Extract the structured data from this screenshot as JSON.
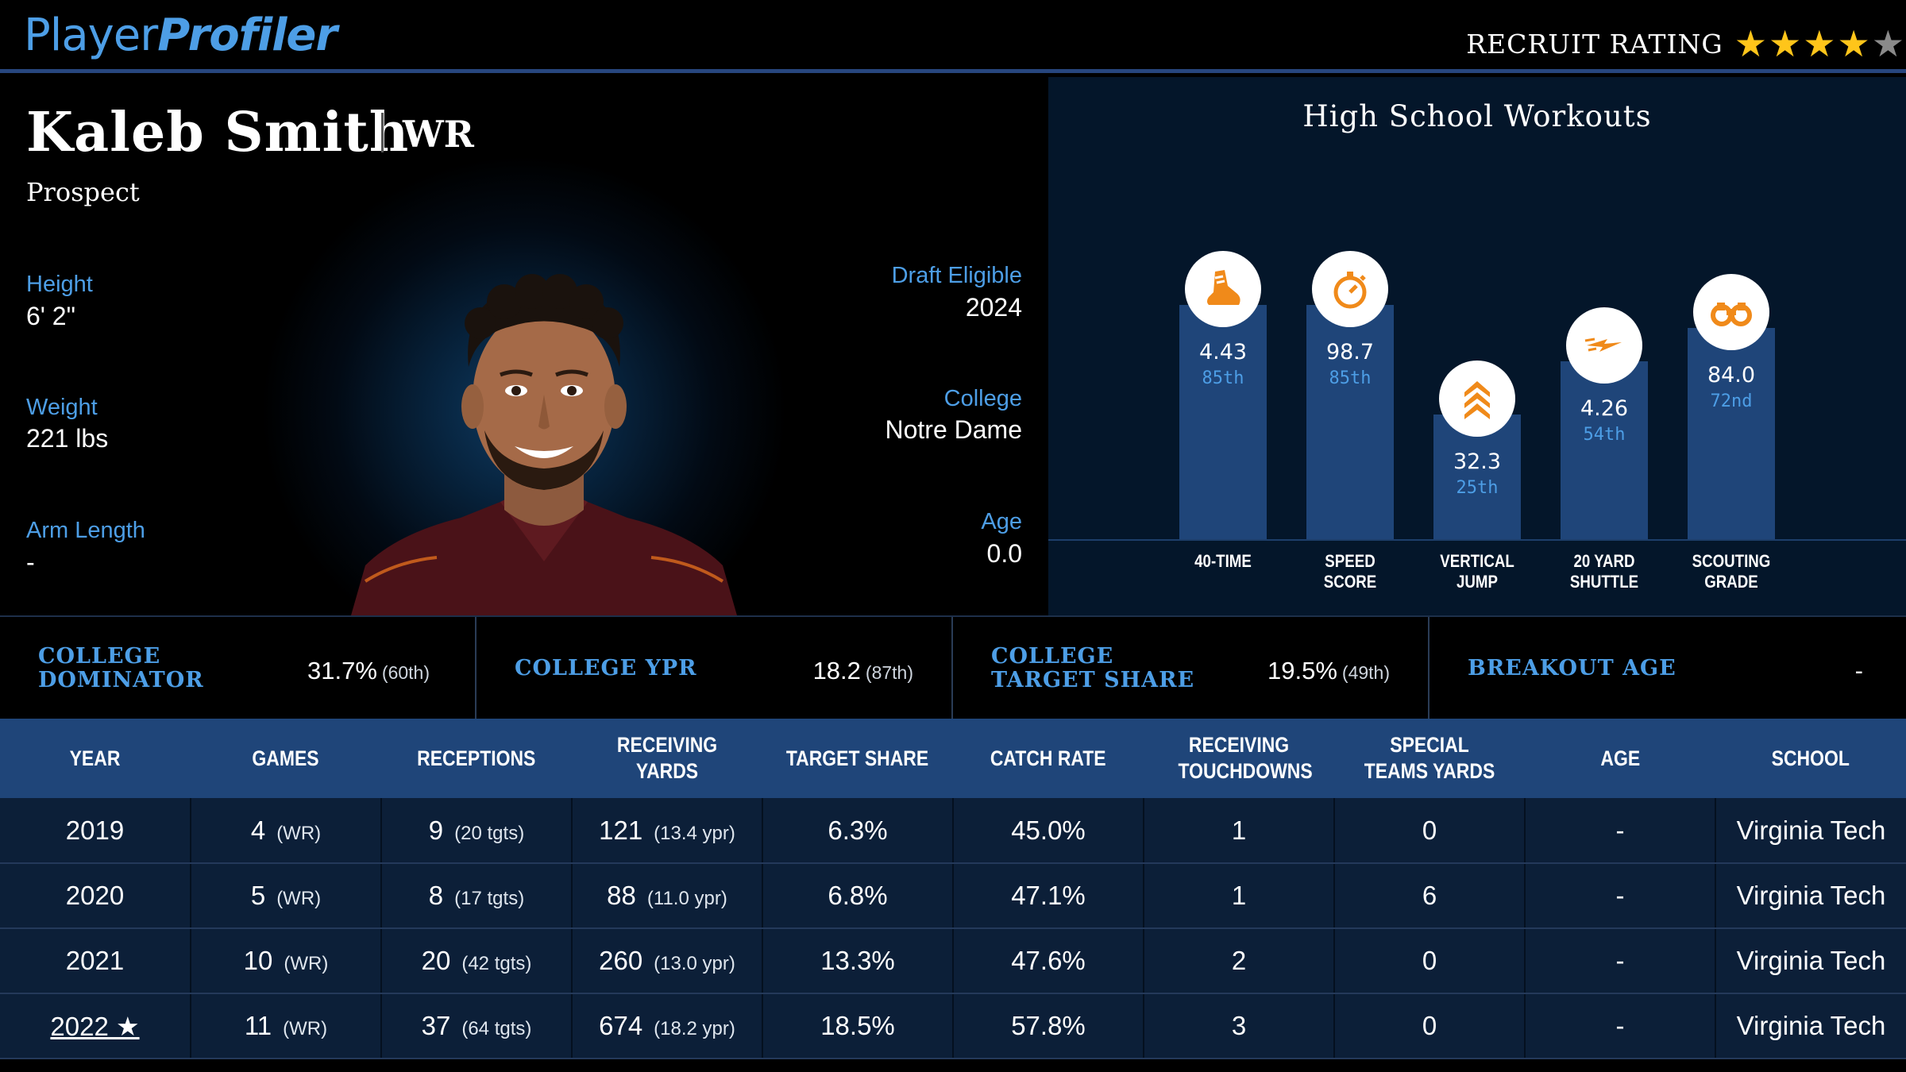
{
  "header": {
    "logo_part1": "Player",
    "logo_part2": "Profiler",
    "rating_label": "RECRUIT RATING",
    "rating_stars": 4,
    "rating_max": 5
  },
  "player": {
    "name": "Kaleb Smith",
    "position": "WR",
    "status": "Prospect",
    "height_label": "Height",
    "height": "6' 2\"",
    "weight_label": "Weight",
    "weight": "221 lbs",
    "arm_label": "Arm Length",
    "arm": "-",
    "draft_label": "Draft Eligible",
    "draft": "2024",
    "college_label": "College",
    "college": "Notre Dame",
    "age_label": "Age",
    "age": "0.0"
  },
  "workouts": {
    "title": "High School Workouts",
    "items": [
      {
        "label_1": "40-TIME",
        "label_2": "",
        "value": "4.43",
        "pct": "85th",
        "pct_num": 85,
        "icon": "shoe-icon"
      },
      {
        "label_1": "SPEED",
        "label_2": "SCORE",
        "value": "98.7",
        "pct": "85th",
        "pct_num": 85,
        "icon": "stopwatch-icon"
      },
      {
        "label_1": "VERTICAL",
        "label_2": "JUMP",
        "value": "32.3",
        "pct": "25th",
        "pct_num": 25,
        "icon": "chevrons-up-icon"
      },
      {
        "label_1": "20 YARD",
        "label_2": "SHUTTLE",
        "value": "4.26",
        "pct": "54th",
        "pct_num": 54,
        "icon": "lightning-icon"
      },
      {
        "label_1": "SCOUTING",
        "label_2": "GRADE",
        "value": "84.0",
        "pct": "72nd",
        "pct_num": 72,
        "icon": "binoculars-icon"
      }
    ]
  },
  "metrics": [
    {
      "label": "COLLEGE DOMINATOR",
      "value": "31.7%",
      "pct": "(60th)"
    },
    {
      "label": "COLLEGE YPR",
      "value": "18.2",
      "pct": "(87th)"
    },
    {
      "label": "COLLEGE TARGET SHARE",
      "value": "19.5%",
      "pct": "(49th)"
    },
    {
      "label": "BREAKOUT AGE",
      "value": "-",
      "pct": ""
    }
  ],
  "table": {
    "headers": [
      "YEAR",
      "GAMES",
      "RECEPTIONS",
      "RECEIVING YARDS",
      "TARGET SHARE",
      "CATCH RATE",
      "RECEIVING TOUCHDOWNS",
      "SPECIAL TEAMS YARDS",
      "AGE",
      "SCHOOL"
    ],
    "rows": [
      {
        "year": "2019",
        "games": "4",
        "games_sub": "(WR)",
        "rec": "9",
        "rec_sub": "(20 tgts)",
        "yds": "121",
        "yds_sub": "(13.4 ypr)",
        "ts": "6.3%",
        "cr": "45.0%",
        "td": "1",
        "st": "0",
        "age": "-",
        "school": "Virginia Tech"
      },
      {
        "year": "2020",
        "games": "5",
        "games_sub": "(WR)",
        "rec": "8",
        "rec_sub": "(17 tgts)",
        "yds": "88",
        "yds_sub": "(11.0 ypr)",
        "ts": "6.8%",
        "cr": "47.1%",
        "td": "1",
        "st": "6",
        "age": "-",
        "school": "Virginia Tech"
      },
      {
        "year": "2021",
        "games": "10",
        "games_sub": "(WR)",
        "rec": "20",
        "rec_sub": "(42 tgts)",
        "yds": "260",
        "yds_sub": "(13.0 ypr)",
        "ts": "13.3%",
        "cr": "47.6%",
        "td": "2",
        "st": "0",
        "age": "-",
        "school": "Virginia Tech"
      },
      {
        "year": "2022 ★",
        "games": "11",
        "games_sub": "(WR)",
        "rec": "37",
        "rec_sub": "(64 tgts)",
        "yds": "674",
        "yds_sub": "(18.2 ypr)",
        "ts": "18.5%",
        "cr": "57.8%",
        "td": "3",
        "st": "0",
        "age": "-",
        "school": "Virginia Tech"
      }
    ]
  }
}
